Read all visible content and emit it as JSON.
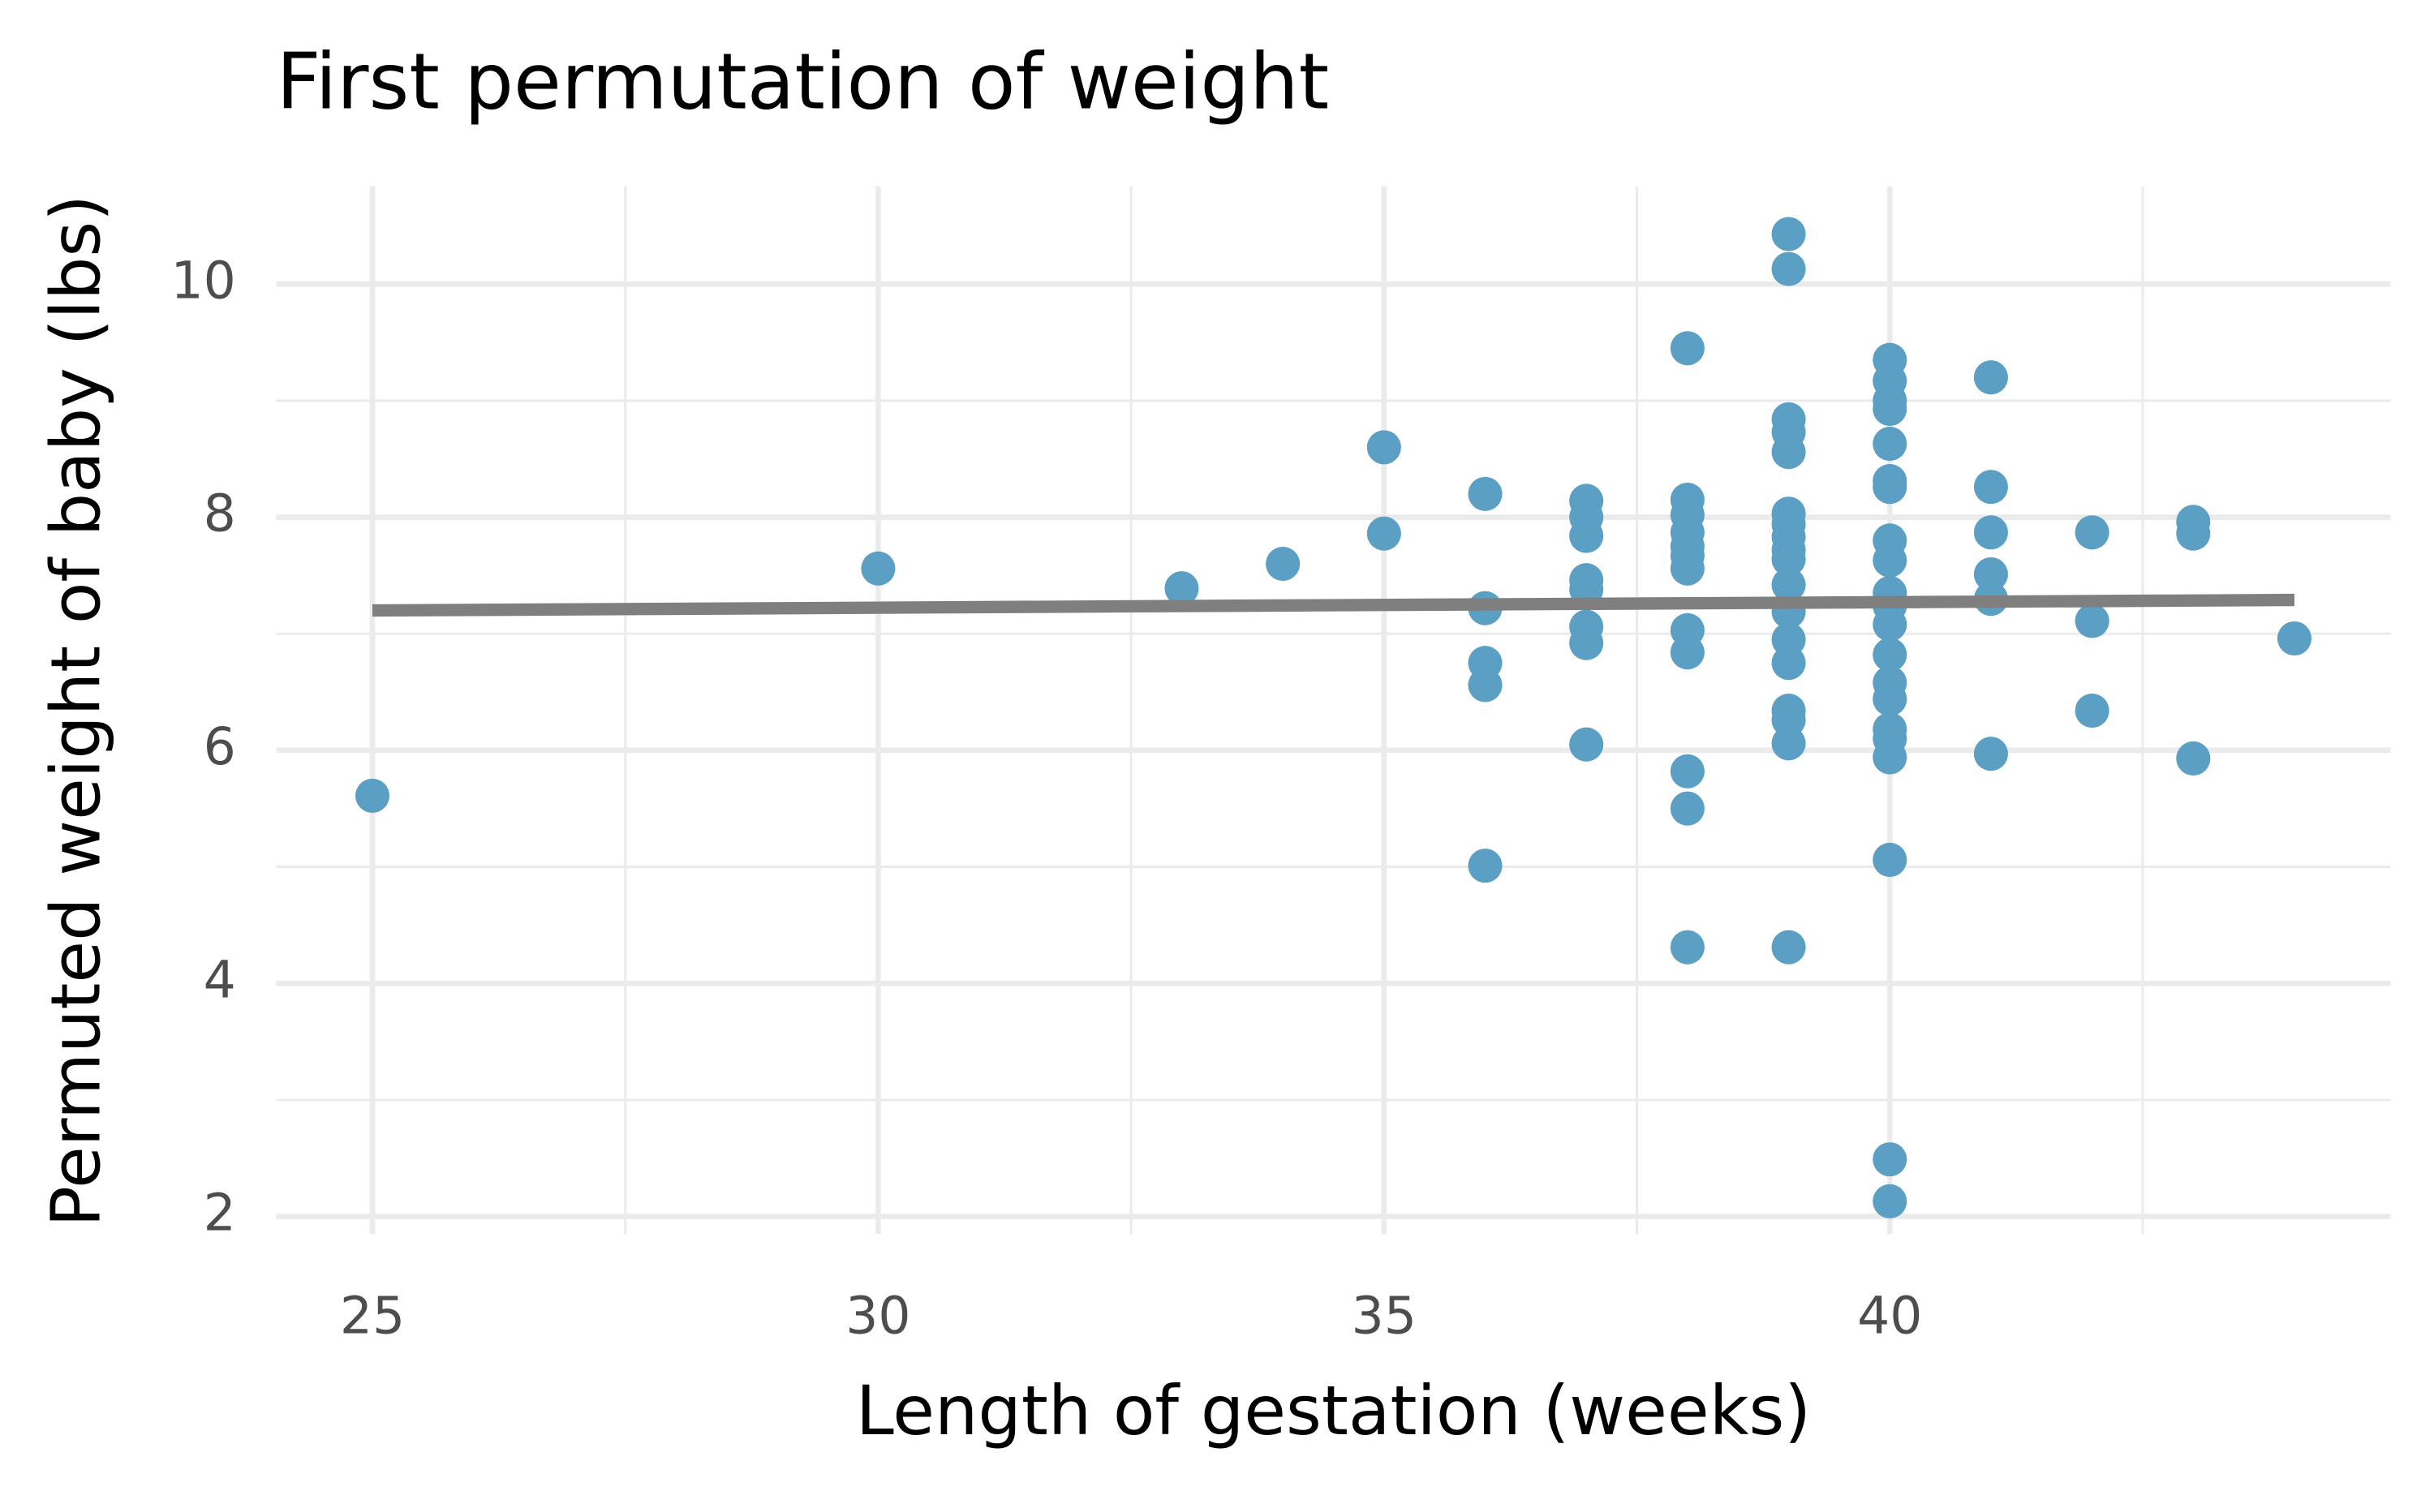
{
  "chart_data": {
    "type": "scatter",
    "title": "First permutation of weight",
    "x_label": "Length of gestation (weeks)",
    "y_label": "Permuted weight of baby (lbs)",
    "xlim": [
      24.05,
      44.95
    ],
    "ylim": [
      1.85,
      10.84
    ],
    "xticks": [
      25,
      30,
      35,
      40
    ],
    "yticks": [
      2,
      4,
      6,
      8,
      10
    ],
    "xminor": [
      27.5,
      32.5,
      37.5,
      42.5
    ],
    "yminor": [
      3,
      5,
      7,
      9
    ],
    "grid": true,
    "series": [
      {
        "color": "#5b9fc4",
        "x": [
          25,
          30,
          33,
          34,
          35,
          35,
          36,
          36,
          36,
          36,
          36,
          37,
          37,
          37,
          37,
          37,
          37,
          37,
          37,
          38,
          38,
          38,
          38,
          38,
          38,
          38,
          38,
          38,
          38,
          38,
          38,
          39,
          39,
          39,
          39,
          39,
          39,
          39,
          39,
          39,
          39,
          39,
          39,
          39,
          39,
          39,
          39,
          39,
          39,
          40,
          40,
          40,
          40,
          40,
          40,
          40,
          40,
          40,
          40,
          40,
          40,
          40,
          40,
          40,
          40,
          40,
          40,
          40,
          40,
          40,
          41,
          41,
          41,
          41,
          41,
          41,
          42,
          42,
          42,
          43,
          43,
          43,
          44
        ],
        "y": [
          5.61,
          7.56,
          7.39,
          7.6,
          8.6,
          7.86,
          8.2,
          7.22,
          6.75,
          6.56,
          5.01,
          8.14,
          8.0,
          7.84,
          7.46,
          7.38,
          7.06,
          6.92,
          6.05,
          9.45,
          8.15,
          8.02,
          7.87,
          7.75,
          7.67,
          7.56,
          7.03,
          6.84,
          5.82,
          5.5,
          4.31,
          10.43,
          10.13,
          8.84,
          8.73,
          8.56,
          8.03,
          7.94,
          7.83,
          7.72,
          7.64,
          7.42,
          7.19,
          6.95,
          6.75,
          6.34,
          6.26,
          6.06,
          4.31,
          9.35,
          9.17,
          9.0,
          8.93,
          8.63,
          8.31,
          8.26,
          7.8,
          7.63,
          7.35,
          7.24,
          7.08,
          6.82,
          6.58,
          6.44,
          6.18,
          6.1,
          5.94,
          5.06,
          2.49,
          2.13,
          9.2,
          8.26,
          7.87,
          7.51,
          7.3,
          5.97,
          7.87,
          7.11,
          6.34,
          7.96,
          7.86,
          5.93,
          6.96
        ]
      }
    ],
    "trend_line": {
      "color": "#7f7f7f",
      "x": [
        25,
        44
      ],
      "y": [
        7.2,
        7.29
      ]
    }
  }
}
